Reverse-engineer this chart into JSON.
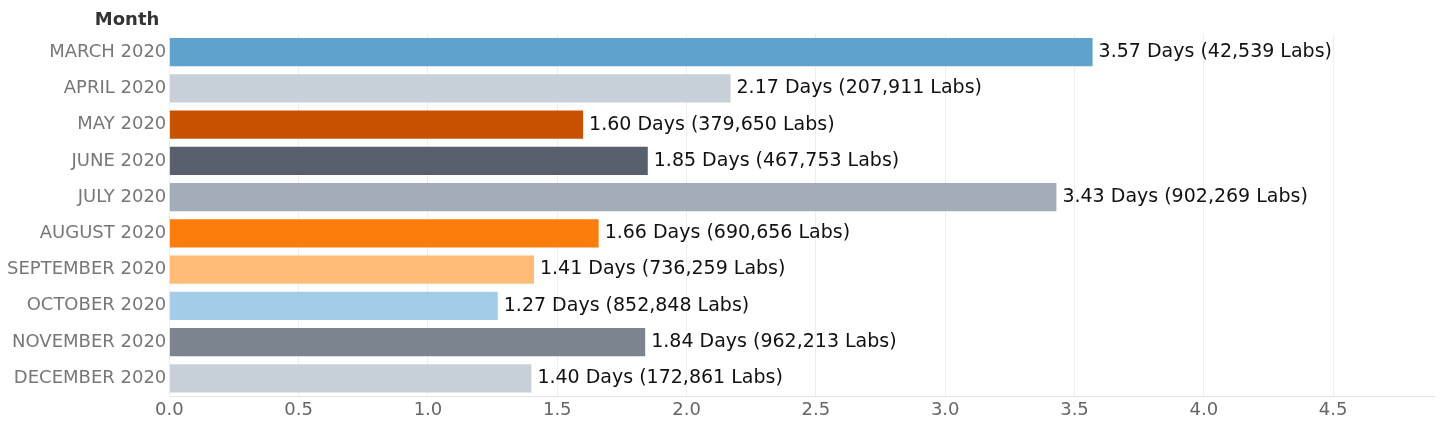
{
  "chart_data": {
    "type": "bar",
    "orientation": "horizontal",
    "ylabel": "Month",
    "categories": [
      "MARCH 2020",
      "APRIL 2020",
      "MAY 2020",
      "JUNE 2020",
      "JULY 2020",
      "AUGUST 2020",
      "SEPTEMBER 2020",
      "OCTOBER 2020",
      "NOVEMBER 2020",
      "DECEMBER 2020"
    ],
    "values": [
      3.57,
      2.17,
      1.6,
      1.85,
      3.43,
      1.66,
      1.41,
      1.27,
      1.84,
      1.4
    ],
    "colors": [
      "#5fa2cd",
      "#c8d0d9",
      "#c85200",
      "#57606c",
      "#a3acb9",
      "#fc7d0b",
      "#ffbc79",
      "#a3cce9",
      "#7b848f",
      "#c8d0d9"
    ],
    "value_labels": [
      "3.57 Days (42,539 Labs)",
      "2.17 Days (207,911 Labs)",
      "1.60 Days (379,650 Labs)",
      "1.85 Days (467,753 Labs)",
      "3.43 Days (902,269 Labs)",
      "1.66 Days (690,656 Labs)",
      "1.41 Days (736,259 Labs)",
      "1.27 Days (852,848 Labs)",
      "1.84 Days (962,213 Labs)",
      "1.40 Days (172,861 Labs)"
    ],
    "xlim": [
      0,
      4.89
    ],
    "xticks": [
      {
        "value": 0,
        "label": "0.0"
      },
      {
        "value": 0.5,
        "label": "0.5"
      },
      {
        "value": 1,
        "label": "1.0"
      },
      {
        "value": 1.5,
        "label": "1.5"
      },
      {
        "value": 2,
        "label": "2.0"
      },
      {
        "value": 2.5,
        "label": "2.5"
      },
      {
        "value": 3,
        "label": "3.0"
      },
      {
        "value": 3.5,
        "label": "3.5"
      },
      {
        "value": 4,
        "label": "4.0"
      },
      {
        "value": 4.5,
        "label": "4.5"
      }
    ],
    "grid": "x",
    "legend": false
  }
}
